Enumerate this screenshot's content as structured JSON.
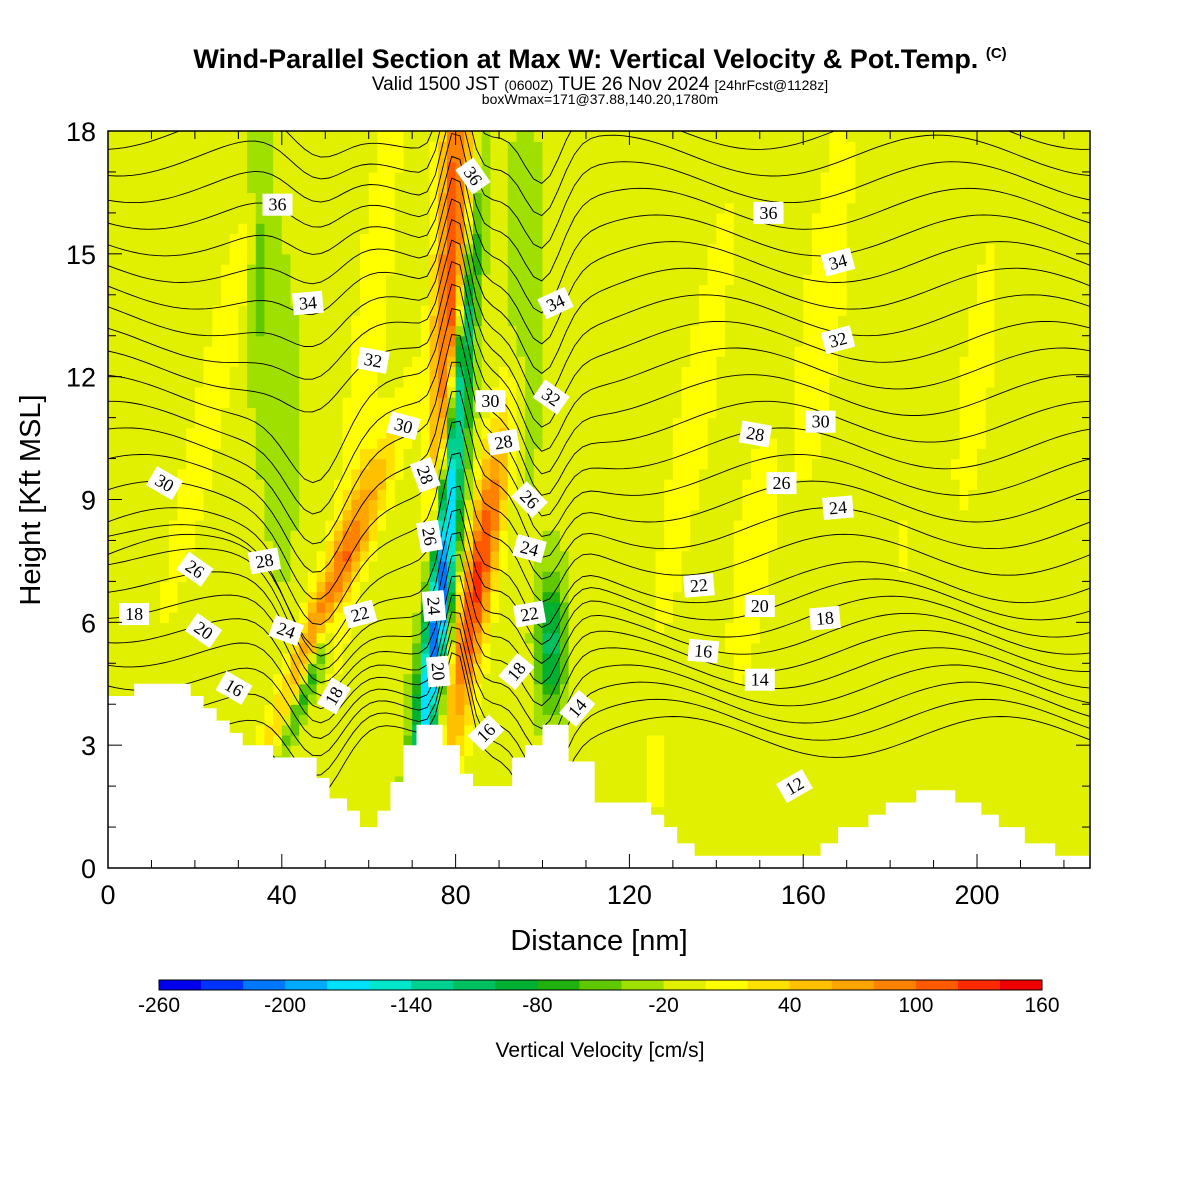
{
  "title": {
    "main": "Wind-Parallel Section at Max W: Vertical Velocity & Pot.Temp.",
    "copyright": "(C)",
    "valid_prefix": "Valid 1500 JST",
    "valid_utc": "(0600Z)",
    "valid_date": "TUE 26 Nov 2024",
    "forecast_tag": "[24hrFcst@1128z]",
    "box_info": "boxWmax=171@37.88,140.20,1780m"
  },
  "chart_data": {
    "type": "heatmap",
    "xlabel": "Distance [nm]",
    "ylabel": "Height [Kft MSL]",
    "xlim": [
      0,
      226
    ],
    "ylim": [
      0,
      18
    ],
    "xticks": [
      0,
      40,
      80,
      120,
      160,
      200
    ],
    "yticks": [
      0,
      3,
      6,
      9,
      12,
      15,
      18
    ],
    "colorbar": {
      "label": "Vertical Velocity [cm/s]",
      "ticks": [
        "-260",
        "-200",
        "-140",
        "-80",
        "-20",
        "40",
        "100",
        "160"
      ],
      "min": -260,
      "max": 160,
      "step": 20,
      "colors": [
        "#0000ee",
        "#0033ff",
        "#0077ff",
        "#00aaff",
        "#00e0ff",
        "#00e8cc",
        "#00d090",
        "#00c060",
        "#00b030",
        "#20b010",
        "#60c800",
        "#a0e000",
        "#e0f000",
        "#ffff00",
        "#ffe000",
        "#ffc000",
        "#ffa500",
        "#ff8200",
        "#ff5a00",
        "#ff2a00",
        "#ee0000",
        "#c8002a",
        "#a00050",
        "#800070",
        "#600090",
        "#400090"
      ]
    },
    "terrain": [
      [
        0,
        4.2
      ],
      [
        6,
        4.2
      ],
      [
        6,
        4.5
      ],
      [
        19,
        4.5
      ],
      [
        19,
        4.2
      ],
      [
        22,
        4.2
      ],
      [
        22,
        3.9
      ],
      [
        25,
        3.9
      ],
      [
        25,
        3.6
      ],
      [
        28,
        3.6
      ],
      [
        28,
        3.3
      ],
      [
        31,
        3.3
      ],
      [
        31,
        3.0
      ],
      [
        38,
        3.0
      ],
      [
        38,
        2.7
      ],
      [
        48,
        2.7
      ],
      [
        48,
        2.2
      ],
      [
        51,
        2.2
      ],
      [
        51,
        1.7
      ],
      [
        55,
        1.7
      ],
      [
        55,
        1.4
      ],
      [
        58,
        1.4
      ],
      [
        58,
        1.0
      ],
      [
        62,
        1.0
      ],
      [
        62,
        1.4
      ],
      [
        65,
        1.4
      ],
      [
        65,
        2.1
      ],
      [
        68,
        2.1
      ],
      [
        68,
        3.0
      ],
      [
        71,
        3.0
      ],
      [
        71,
        3.5
      ],
      [
        77,
        3.5
      ],
      [
        77,
        3.0
      ],
      [
        81,
        3.0
      ],
      [
        81,
        2.3
      ],
      [
        84,
        2.3
      ],
      [
        84,
        2.0
      ],
      [
        93,
        2.0
      ],
      [
        93,
        2.7
      ],
      [
        96,
        2.7
      ],
      [
        96,
        3.0
      ],
      [
        100,
        3.0
      ],
      [
        100,
        3.5
      ],
      [
        106,
        3.5
      ],
      [
        106,
        2.6
      ],
      [
        112,
        2.6
      ],
      [
        112,
        1.6
      ],
      [
        125,
        1.6
      ],
      [
        125,
        1.3
      ],
      [
        128,
        1.3
      ],
      [
        128,
        1.0
      ],
      [
        131,
        1.0
      ],
      [
        131,
        0.6
      ],
      [
        135,
        0.6
      ],
      [
        135,
        0.3
      ],
      [
        164,
        0.3
      ],
      [
        164,
        0.6
      ],
      [
        168,
        0.6
      ],
      [
        168,
        1.0
      ],
      [
        175,
        1.0
      ],
      [
        175,
        1.3
      ],
      [
        179,
        1.3
      ],
      [
        179,
        1.6
      ],
      [
        186,
        1.6
      ],
      [
        186,
        1.9
      ],
      [
        195,
        1.9
      ],
      [
        195,
        1.6
      ],
      [
        201,
        1.6
      ],
      [
        201,
        1.3
      ],
      [
        205,
        1.3
      ],
      [
        205,
        1.0
      ],
      [
        211,
        1.0
      ],
      [
        211,
        0.6
      ],
      [
        218,
        0.6
      ],
      [
        218,
        0.3
      ],
      [
        226,
        0.3
      ]
    ],
    "w_features": [
      {
        "x": 51,
        "y": 6.5,
        "amp": 110,
        "sx": 3,
        "sy": 2.8,
        "tilt": 3.5
      },
      {
        "x": 46,
        "y": 4.5,
        "amp": -120,
        "sx": 1.8,
        "sy": 1.4,
        "tilt": 3.5
      },
      {
        "x": 79,
        "y": 15,
        "amp": 130,
        "sx": 2.4,
        "sy": 6,
        "tilt": 0.4
      },
      {
        "x": 85,
        "y": 7,
        "amp": 140,
        "sx": 2.6,
        "sy": 2.8,
        "tilt": 1.5
      },
      {
        "x": 76,
        "y": 6.2,
        "amp": -230,
        "sx": 2.2,
        "sy": 3.3,
        "tilt": 1
      },
      {
        "x": 81,
        "y": 12,
        "amp": -110,
        "sx": 1.4,
        "sy": 3,
        "tilt": 1
      },
      {
        "x": 102,
        "y": 5.5,
        "amp": -100,
        "sx": 2.2,
        "sy": 1.2,
        "tilt": 0
      },
      {
        "x": 25,
        "y": 12,
        "amp": 25,
        "sx": 3,
        "sy": 5,
        "tilt": 2
      },
      {
        "x": 60,
        "y": 13,
        "amp": 25,
        "sx": 3,
        "sy": 6,
        "tilt": 1
      },
      {
        "x": 135,
        "y": 11,
        "amp": 28,
        "sx": 3,
        "sy": 4,
        "tilt": 1.5
      },
      {
        "x": 148,
        "y": 7.5,
        "amp": 20,
        "sx": 4,
        "sy": 3,
        "tilt": 1
      },
      {
        "x": 165,
        "y": 14,
        "amp": 22,
        "sx": 4,
        "sy": 4,
        "tilt": 1
      },
      {
        "x": 200,
        "y": 12,
        "amp": 15,
        "sx": 5,
        "sy": 5,
        "tilt": 1
      },
      {
        "x": 183,
        "y": 8,
        "amp": 12,
        "sx": 4,
        "sy": 3,
        "tilt": 1
      },
      {
        "x": 126,
        "y": 2.3,
        "amp": 50,
        "sx": 1,
        "sy": 0.6,
        "tilt": 0
      },
      {
        "x": 35,
        "y": 16,
        "amp": -40,
        "sx": 2,
        "sy": 3,
        "tilt": 0
      },
      {
        "x": 96,
        "y": 14,
        "amp": -30,
        "sx": 3,
        "sy": 3,
        "tilt": 0
      },
      {
        "x": 40,
        "y": 11,
        "amp": -20,
        "sx": 3,
        "sy": 3,
        "tilt": 0
      }
    ],
    "w_background": -12,
    "theta_contours": {
      "min": 11,
      "max": 37,
      "interval": 1
    },
    "theta_labels": [
      {
        "text": "36",
        "x": 39,
        "y": 16.2,
        "rot": 0
      },
      {
        "text": "34",
        "x": 46,
        "y": 13.8,
        "rot": -5
      },
      {
        "text": "32",
        "x": 61,
        "y": 12.4,
        "rot": 10
      },
      {
        "text": "30",
        "x": 68,
        "y": 10.8,
        "rot": 15
      },
      {
        "text": "30",
        "x": 13,
        "y": 9.4,
        "rot": 30
      },
      {
        "text": "28",
        "x": 36,
        "y": 7.5,
        "rot": -10
      },
      {
        "text": "26",
        "x": 20,
        "y": 7.3,
        "rot": 35
      },
      {
        "text": "18",
        "x": 6,
        "y": 6.2,
        "rot": 0
      },
      {
        "text": "20",
        "x": 22,
        "y": 5.8,
        "rot": 35
      },
      {
        "text": "24",
        "x": 41,
        "y": 5.8,
        "rot": 20
      },
      {
        "text": "16",
        "x": 29,
        "y": 4.4,
        "rot": 30
      },
      {
        "text": "22",
        "x": 58,
        "y": 6.2,
        "rot": -15
      },
      {
        "text": "18",
        "x": 52,
        "y": 4.2,
        "rot": -60
      },
      {
        "text": "28",
        "x": 73,
        "y": 9.6,
        "rot": 70
      },
      {
        "text": "26",
        "x": 74,
        "y": 8.1,
        "rot": 80
      },
      {
        "text": "24",
        "x": 75,
        "y": 6.4,
        "rot": 85
      },
      {
        "text": "20",
        "x": 76,
        "y": 4.8,
        "rot": 85
      },
      {
        "text": "36",
        "x": 84,
        "y": 16.9,
        "rot": 55
      },
      {
        "text": "34",
        "x": 103,
        "y": 13.8,
        "rot": -25
      },
      {
        "text": "30",
        "x": 88,
        "y": 11.4,
        "rot": 0
      },
      {
        "text": "32",
        "x": 102,
        "y": 11.5,
        "rot": 35
      },
      {
        "text": "28",
        "x": 91,
        "y": 10.4,
        "rot": -10
      },
      {
        "text": "26",
        "x": 97,
        "y": 9.0,
        "rot": 45
      },
      {
        "text": "24",
        "x": 97,
        "y": 7.8,
        "rot": 15
      },
      {
        "text": "22",
        "x": 97,
        "y": 6.2,
        "rot": -10
      },
      {
        "text": "18",
        "x": 94,
        "y": 4.8,
        "rot": -50
      },
      {
        "text": "16",
        "x": 87,
        "y": 3.3,
        "rot": -45
      },
      {
        "text": "14",
        "x": 108,
        "y": 3.9,
        "rot": -50
      },
      {
        "text": "36",
        "x": 152,
        "y": 16.0,
        "rot": 0
      },
      {
        "text": "34",
        "x": 168,
        "y": 14.8,
        "rot": -15
      },
      {
        "text": "32",
        "x": 168,
        "y": 12.9,
        "rot": -15
      },
      {
        "text": "30",
        "x": 164,
        "y": 10.9,
        "rot": 0
      },
      {
        "text": "28",
        "x": 149,
        "y": 10.6,
        "rot": 10
      },
      {
        "text": "26",
        "x": 155,
        "y": 9.4,
        "rot": 0
      },
      {
        "text": "24",
        "x": 168,
        "y": 8.8,
        "rot": -5
      },
      {
        "text": "22",
        "x": 136,
        "y": 6.9,
        "rot": -5
      },
      {
        "text": "20",
        "x": 150,
        "y": 6.4,
        "rot": 0
      },
      {
        "text": "18",
        "x": 165,
        "y": 6.1,
        "rot": -5
      },
      {
        "text": "16",
        "x": 137,
        "y": 5.3,
        "rot": 5
      },
      {
        "text": "14",
        "x": 150,
        "y": 4.6,
        "rot": 0
      },
      {
        "text": "12",
        "x": 158,
        "y": 2.0,
        "rot": -30
      }
    ]
  }
}
